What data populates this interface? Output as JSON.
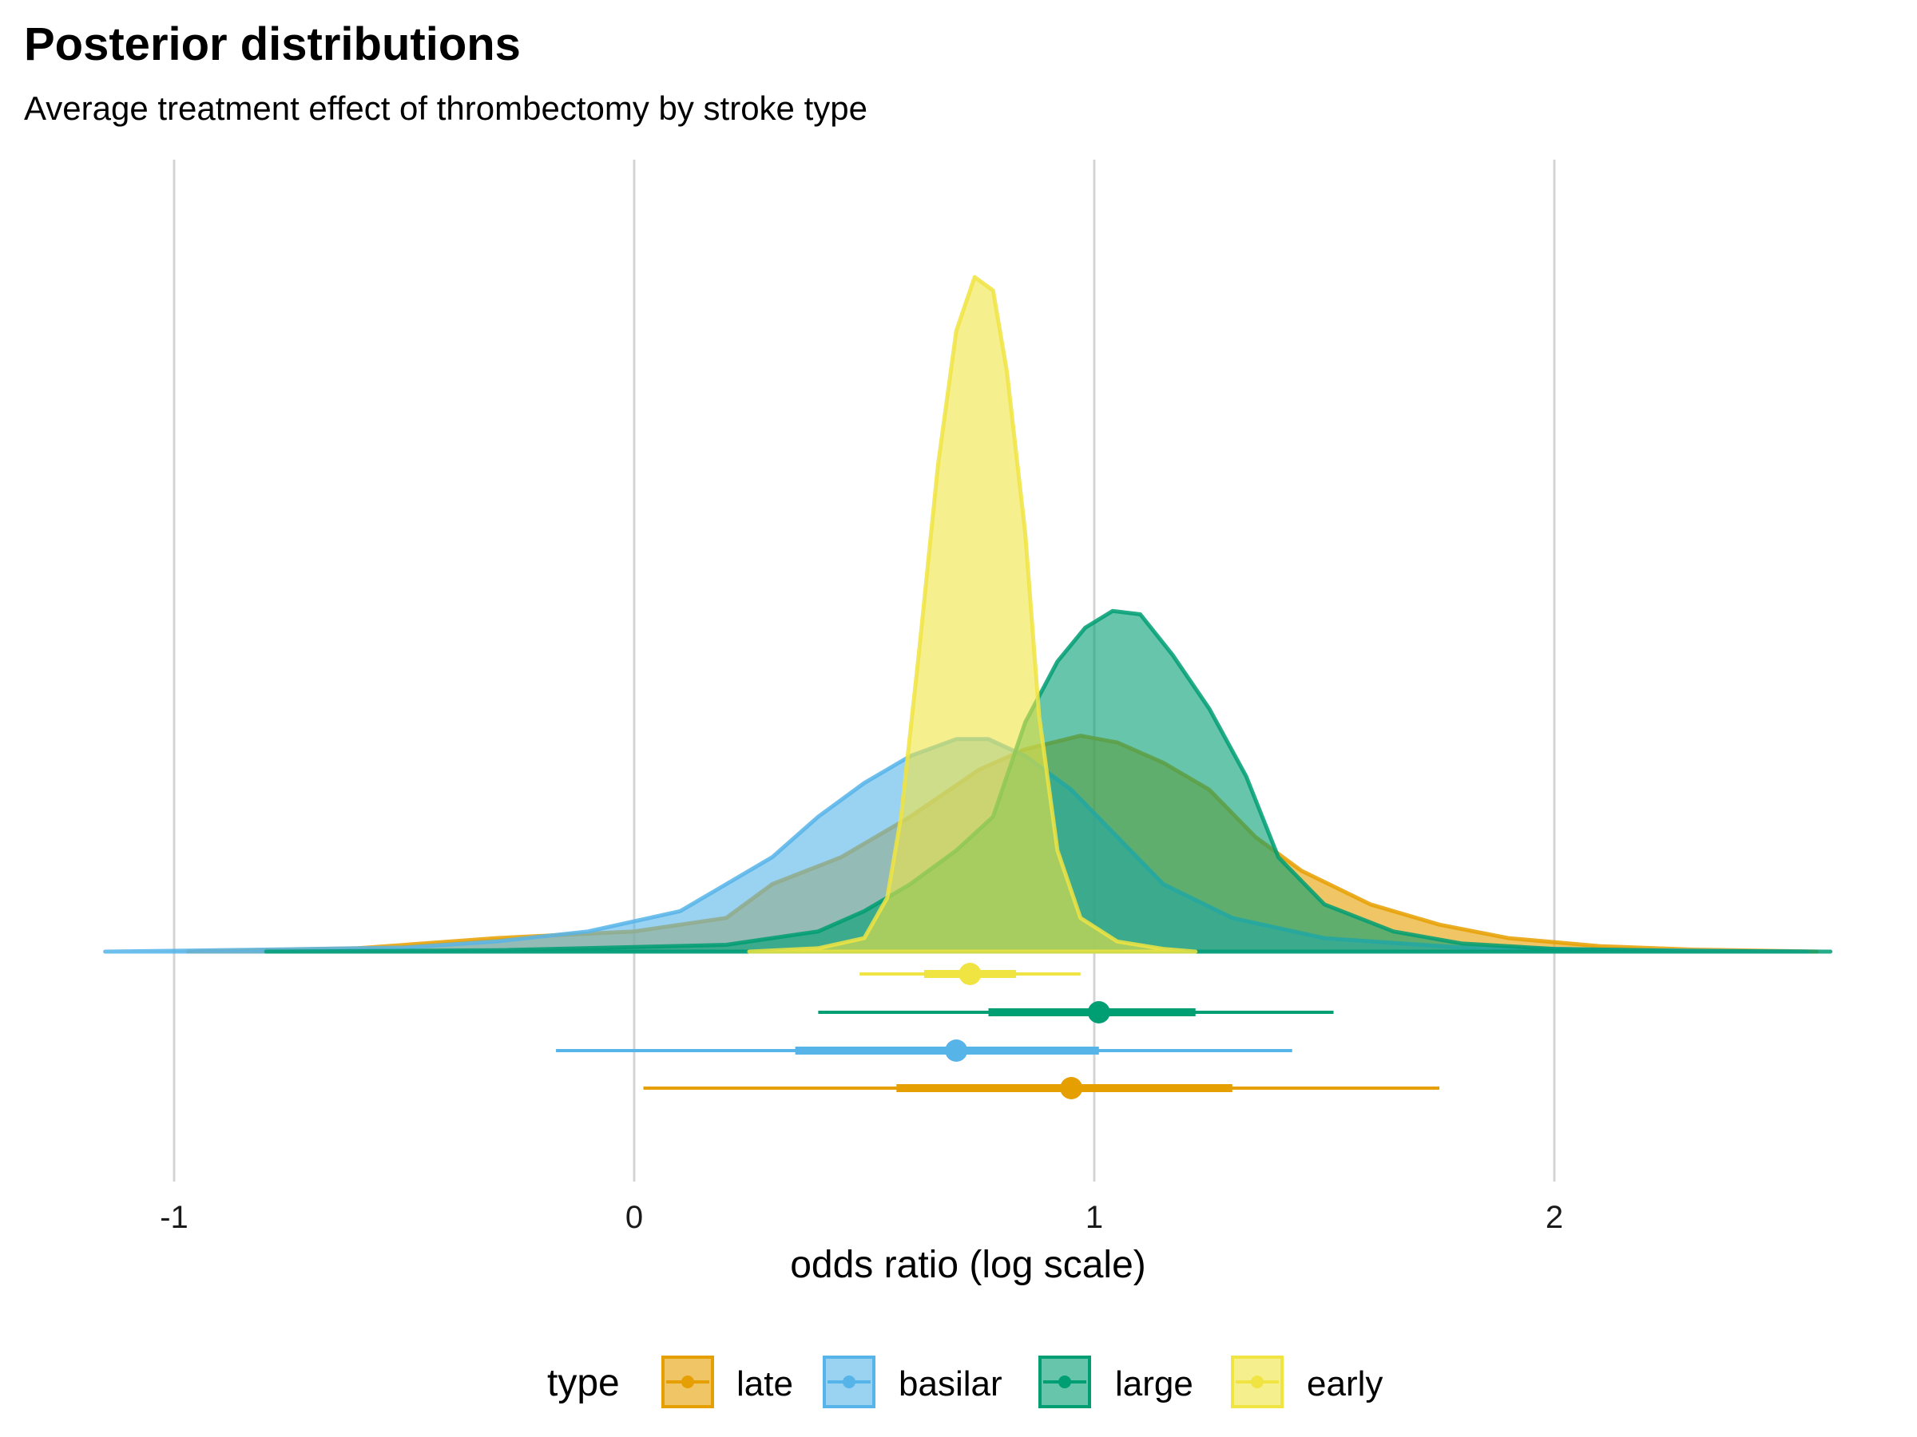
{
  "chart_data": {
    "type": "density",
    "title": "Posterior distributions",
    "subtitle": "Average treatment effect of thrombectomy by stroke type",
    "xlabel": "odds ratio (log scale)",
    "xlim": [
      -1.15,
      2.6
    ],
    "x_ticks": [
      -1,
      0,
      1,
      2
    ],
    "x_tick_labels": [
      "-1",
      "0",
      "1",
      "2"
    ],
    "grid": "vertical-major",
    "legend": {
      "title": "type",
      "position": "bottom",
      "entries": [
        "late",
        "basilar",
        "large",
        "early"
      ]
    },
    "series": [
      {
        "name": "late",
        "color": "#E69F00",
        "density_curve": [
          [
            -0.97,
            0
          ],
          [
            -0.6,
            0.005
          ],
          [
            -0.3,
            0.02
          ],
          [
            0,
            0.03
          ],
          [
            0.2,
            0.05
          ],
          [
            0.3,
            0.1
          ],
          [
            0.45,
            0.14
          ],
          [
            0.6,
            0.2
          ],
          [
            0.75,
            0.27
          ],
          [
            0.85,
            0.3
          ],
          [
            0.97,
            0.32
          ],
          [
            1.05,
            0.31
          ],
          [
            1.15,
            0.28
          ],
          [
            1.25,
            0.24
          ],
          [
            1.35,
            0.17
          ],
          [
            1.45,
            0.12
          ],
          [
            1.6,
            0.07
          ],
          [
            1.75,
            0.04
          ],
          [
            1.9,
            0.02
          ],
          [
            2.1,
            0.008
          ],
          [
            2.3,
            0.003
          ],
          [
            2.57,
            0
          ]
        ],
        "median": 0.95,
        "interval_66": [
          0.57,
          1.3
        ],
        "interval_95": [
          0.02,
          1.75
        ]
      },
      {
        "name": "basilar",
        "color": "#56B4E9",
        "density_curve": [
          [
            -1.15,
            0
          ],
          [
            -0.8,
            0.003
          ],
          [
            -0.5,
            0.006
          ],
          [
            -0.3,
            0.015
          ],
          [
            -0.1,
            0.03
          ],
          [
            0.1,
            0.06
          ],
          [
            0.2,
            0.1
          ],
          [
            0.3,
            0.14
          ],
          [
            0.4,
            0.2
          ],
          [
            0.5,
            0.25
          ],
          [
            0.6,
            0.29
          ],
          [
            0.7,
            0.315
          ],
          [
            0.77,
            0.315
          ],
          [
            0.85,
            0.29
          ],
          [
            0.95,
            0.24
          ],
          [
            1.05,
            0.17
          ],
          [
            1.15,
            0.1
          ],
          [
            1.3,
            0.05
          ],
          [
            1.5,
            0.02
          ],
          [
            1.8,
            0.006
          ],
          [
            2.2,
            0.002
          ],
          [
            2.55,
            0
          ]
        ],
        "median": 0.7,
        "interval_66": [
          0.35,
          1.01
        ],
        "interval_95": [
          -0.17,
          1.43
        ]
      },
      {
        "name": "large",
        "color": "#009E73",
        "density_curve": [
          [
            -0.8,
            0
          ],
          [
            -0.3,
            0.002
          ],
          [
            0.2,
            0.01
          ],
          [
            0.4,
            0.03
          ],
          [
            0.5,
            0.06
          ],
          [
            0.6,
            0.1
          ],
          [
            0.7,
            0.15
          ],
          [
            0.78,
            0.2
          ],
          [
            0.85,
            0.34
          ],
          [
            0.92,
            0.43
          ],
          [
            0.98,
            0.48
          ],
          [
            1.04,
            0.505
          ],
          [
            1.1,
            0.5
          ],
          [
            1.17,
            0.44
          ],
          [
            1.25,
            0.36
          ],
          [
            1.33,
            0.26
          ],
          [
            1.4,
            0.14
          ],
          [
            1.5,
            0.07
          ],
          [
            1.65,
            0.03
          ],
          [
            1.8,
            0.012
          ],
          [
            2.0,
            0.004
          ],
          [
            2.3,
            0.001
          ],
          [
            2.6,
            0
          ]
        ],
        "median": 1.01,
        "interval_66": [
          0.77,
          1.22
        ],
        "interval_95": [
          0.4,
          1.52
        ]
      },
      {
        "name": "early",
        "color": "#F0E442",
        "density_curve": [
          [
            0.25,
            0
          ],
          [
            0.4,
            0.005
          ],
          [
            0.5,
            0.02
          ],
          [
            0.55,
            0.08
          ],
          [
            0.58,
            0.2
          ],
          [
            0.62,
            0.45
          ],
          [
            0.66,
            0.72
          ],
          [
            0.7,
            0.92
          ],
          [
            0.74,
            1.0
          ],
          [
            0.78,
            0.98
          ],
          [
            0.81,
            0.86
          ],
          [
            0.85,
            0.62
          ],
          [
            0.88,
            0.35
          ],
          [
            0.92,
            0.15
          ],
          [
            0.97,
            0.05
          ],
          [
            1.05,
            0.015
          ],
          [
            1.15,
            0.004
          ],
          [
            1.22,
            0
          ]
        ],
        "median": 0.73,
        "interval_66": [
          0.63,
          0.83
        ],
        "interval_95": [
          0.49,
          0.97
        ]
      }
    ]
  }
}
